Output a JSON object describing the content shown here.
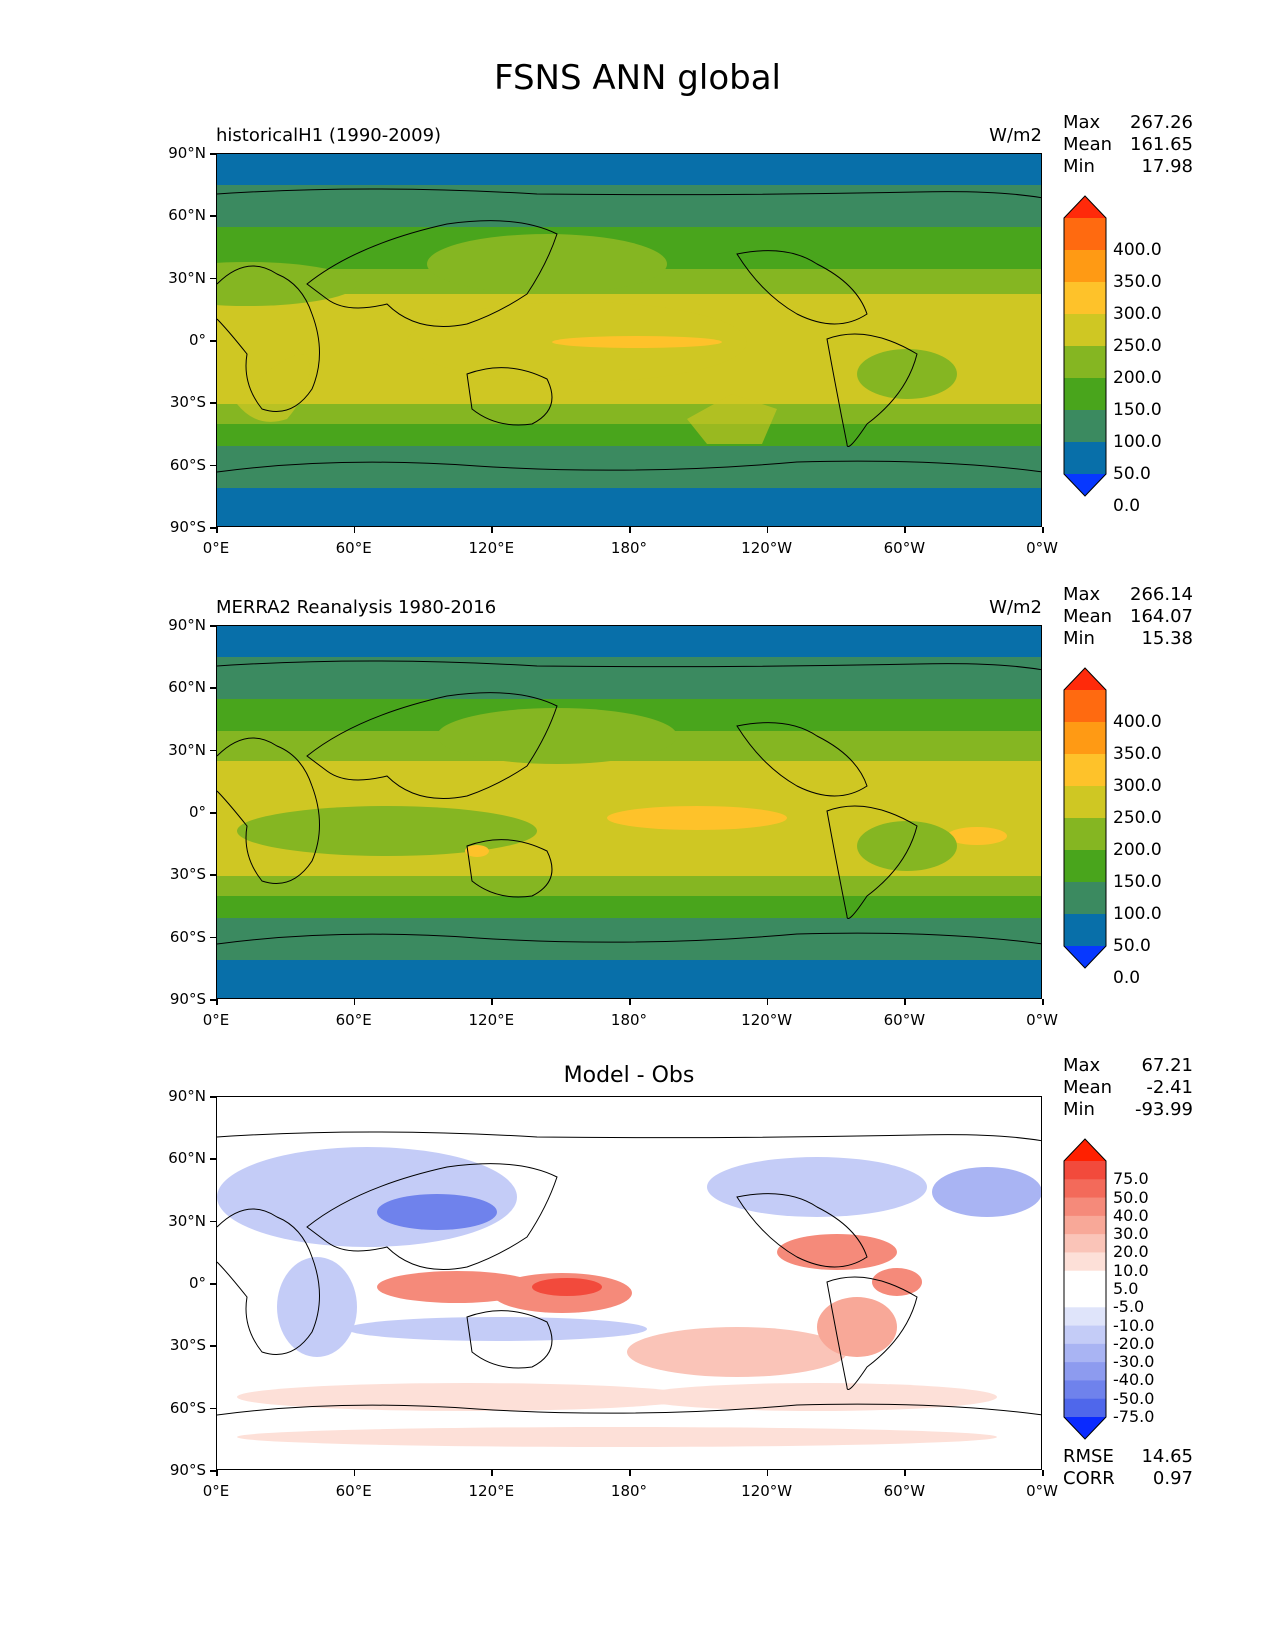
{
  "figure_title": "FSNS ANN global",
  "axis_ticks": {
    "lat": [
      "90°N",
      "60°N",
      "30°N",
      "0°",
      "30°S",
      "60°S",
      "90°S"
    ],
    "lon": [
      "0°E",
      "60°E",
      "120°E",
      "180°",
      "120°W",
      "60°W",
      "0°W"
    ]
  },
  "panels": [
    {
      "title_left": "historicalH1 (1990-2009)",
      "title_right": "W/m2",
      "stats": [
        {
          "label": "Max",
          "value": "267.26"
        },
        {
          "label": "Mean",
          "value": "161.65"
        },
        {
          "label": "Min",
          "value": "17.98"
        }
      ],
      "colorbar": {
        "labels": [
          "400.0",
          "350.0",
          "300.0",
          "250.0",
          "200.0",
          "150.0",
          "100.0",
          "50.0",
          "0.0"
        ],
        "colors": [
          "#ff2a0a",
          "#ff6a10",
          "#ff9a14",
          "#fec22a",
          "#cfc723",
          "#85b622",
          "#49a51c",
          "#3b8a60",
          "#086fa9",
          "#0738ff"
        ]
      }
    },
    {
      "title_left": "MERRA2 Reanalysis 1980-2016",
      "title_right": "W/m2",
      "stats": [
        {
          "label": "Max",
          "value": "266.14"
        },
        {
          "label": "Mean",
          "value": "164.07"
        },
        {
          "label": "Min",
          "value": "15.38"
        }
      ],
      "colorbar": {
        "labels": [
          "400.0",
          "350.0",
          "300.0",
          "250.0",
          "200.0",
          "150.0",
          "100.0",
          "50.0",
          "0.0"
        ],
        "colors": [
          "#ff2a0a",
          "#ff6a10",
          "#ff9a14",
          "#fec22a",
          "#cfc723",
          "#85b622",
          "#49a51c",
          "#3b8a60",
          "#086fa9",
          "#0738ff"
        ]
      }
    },
    {
      "title_center": "Model - Obs",
      "stats": [
        {
          "label": "Max",
          "value": "67.21"
        },
        {
          "label": "Mean",
          "value": "-2.41"
        },
        {
          "label": "Min",
          "value": "-93.99"
        }
      ],
      "colorbar": {
        "labels": [
          "75.0",
          "50.0",
          "40.0",
          "30.0",
          "20.0",
          "10.0",
          "5.0",
          "-5.0",
          "-10.0",
          "-20.0",
          "-30.0",
          "-40.0",
          "-50.0",
          "-75.0"
        ],
        "colors": [
          "#ff2000",
          "#f24a3c",
          "#f36a5a",
          "#f58a7a",
          "#f8a898",
          "#fac4b8",
          "#fde0d8",
          "#ffffff",
          "#ffffff",
          "#dfe4fa",
          "#c4ccf7",
          "#a9b4f3",
          "#8d9bef",
          "#6f82ec",
          "#4f67eb",
          "#0a2aff"
        ]
      },
      "footer_stats": [
        {
          "label": "RMSE",
          "value": "14.65"
        },
        {
          "label": "CORR",
          "value": "0.97"
        }
      ]
    }
  ],
  "chart_data": [
    {
      "type": "heatmap",
      "title": "historicalH1 (1990-2009)",
      "units": "W/m2",
      "xlim": [
        0,
        360
      ],
      "ylim": [
        -90,
        90
      ],
      "levels": [
        0,
        50,
        100,
        150,
        200,
        250,
        300,
        350,
        400
      ],
      "zonal_bands": [
        {
          "lat": [
            75,
            90
          ],
          "level": "<50"
        },
        {
          "lat": [
            60,
            75
          ],
          "level": "50-100"
        },
        {
          "lat": [
            45,
            60
          ],
          "level": "100-150"
        },
        {
          "lat": [
            30,
            45
          ],
          "level": "150-200"
        },
        {
          "lat": [
            -25,
            30
          ],
          "level": "200-250"
        },
        {
          "lat": [
            -40,
            -25
          ],
          "level": "150-200"
        },
        {
          "lat": [
            -48,
            -40
          ],
          "level": "100-150"
        },
        {
          "lat": [
            -65,
            -48
          ],
          "level": "50-100"
        },
        {
          "lat": [
            -90,
            -65
          ],
          "level": "<50"
        }
      ],
      "stats": {
        "max": 267.26,
        "mean": 161.65,
        "min": 17.98
      }
    },
    {
      "type": "heatmap",
      "title": "MERRA2 Reanalysis 1980-2016",
      "units": "W/m2",
      "xlim": [
        0,
        360
      ],
      "ylim": [
        -90,
        90
      ],
      "levels": [
        0,
        50,
        100,
        150,
        200,
        250,
        300,
        350,
        400
      ],
      "zonal_bands": [
        {
          "lat": [
            75,
            90
          ],
          "level": "<50"
        },
        {
          "lat": [
            60,
            75
          ],
          "level": "50-100"
        },
        {
          "lat": [
            45,
            60
          ],
          "level": "100-150"
        },
        {
          "lat": [
            30,
            45
          ],
          "level": "150-200"
        },
        {
          "lat": [
            -25,
            30
          ],
          "level": "200-250"
        },
        {
          "lat": [
            -40,
            -25
          ],
          "level": "150-200"
        },
        {
          "lat": [
            -48,
            -40
          ],
          "level": "100-150"
        },
        {
          "lat": [
            -65,
            -48
          ],
          "level": "50-100"
        },
        {
          "lat": [
            -90,
            -65
          ],
          "level": "<50"
        }
      ],
      "stats": {
        "max": 266.14,
        "mean": 164.07,
        "min": 15.38
      }
    },
    {
      "type": "heatmap",
      "title": "Model - Obs",
      "xlim": [
        0,
        360
      ],
      "ylim": [
        -90,
        90
      ],
      "levels": [
        -75,
        -50,
        -40,
        -30,
        -20,
        -10,
        -5,
        5,
        10,
        20,
        30,
        40,
        50,
        75
      ],
      "stats": {
        "max": 67.21,
        "mean": -2.41,
        "min": -93.99,
        "rmse": 14.65,
        "corr": 0.97
      }
    }
  ]
}
